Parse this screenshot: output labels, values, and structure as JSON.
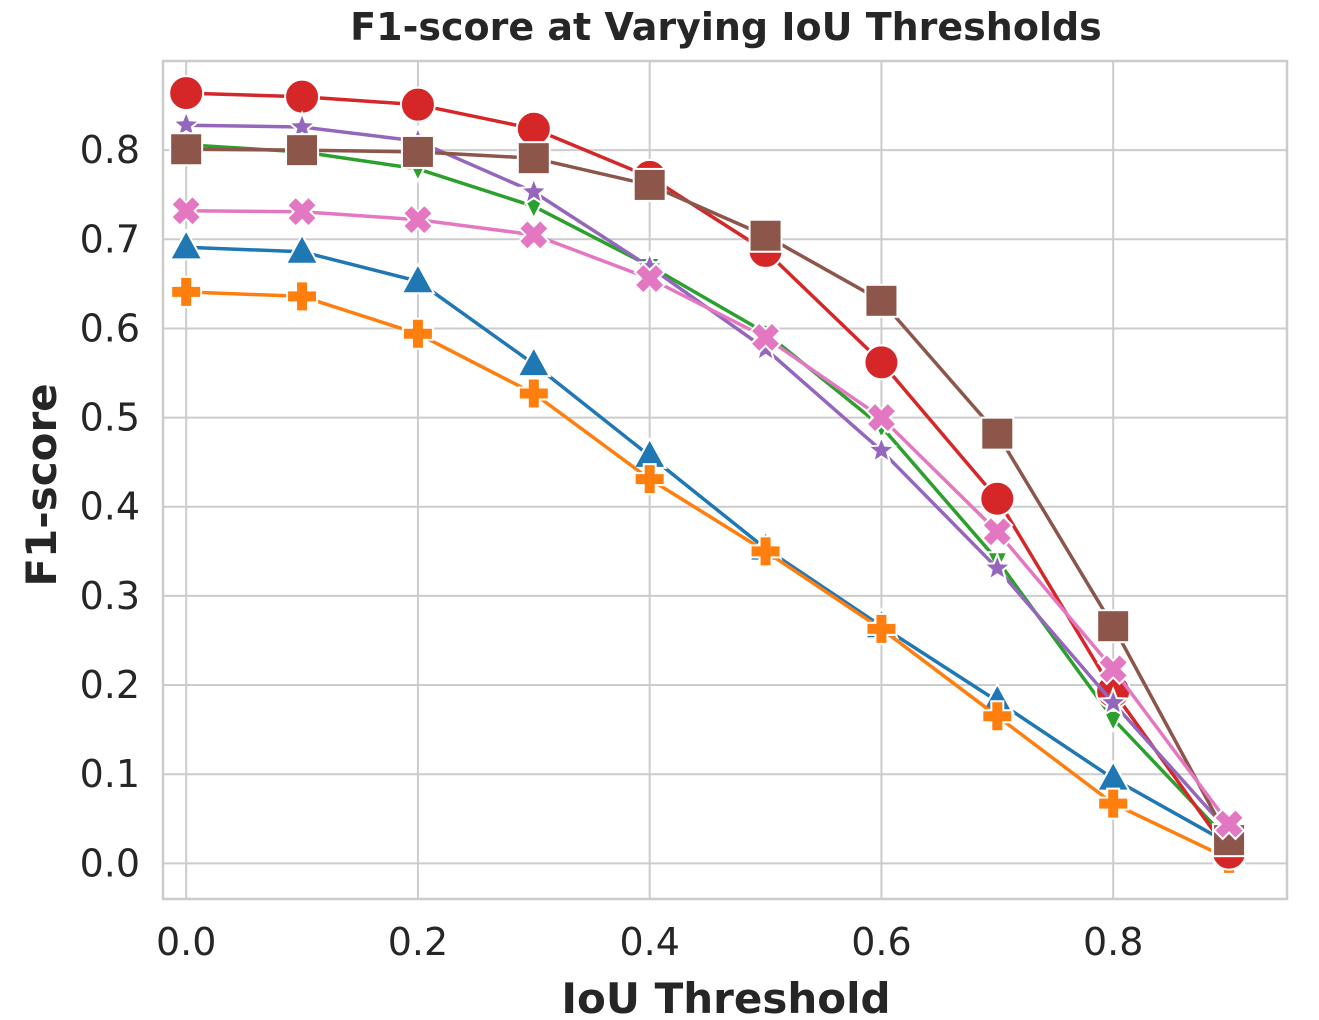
{
  "chart_data": {
    "type": "line",
    "title": "F1-score at Varying IoU Thresholds",
    "xlabel": "IoU Threshold",
    "ylabel": "F1-score",
    "xlim": [
      -0.02,
      0.95
    ],
    "ylim": [
      -0.04,
      0.9
    ],
    "xticks": [
      0.0,
      0.2,
      0.4,
      0.6,
      0.8
    ],
    "yticks": [
      0.0,
      0.1,
      0.2,
      0.3,
      0.4,
      0.5,
      0.6,
      0.7,
      0.8
    ],
    "grid": true,
    "legend": "none",
    "x": [
      0.0,
      0.1,
      0.2,
      0.3,
      0.4,
      0.5,
      0.6,
      0.7,
      0.8,
      0.9
    ],
    "series": [
      {
        "color": "#1f77b4",
        "marker": "triangle-up",
        "values": [
          0.691,
          0.686,
          0.653,
          0.56,
          0.457,
          0.353,
          0.266,
          0.182,
          0.095,
          0.022
        ]
      },
      {
        "color": "#ff7f0e",
        "marker": "plus",
        "values": [
          0.641,
          0.636,
          0.594,
          0.527,
          0.431,
          0.35,
          0.263,
          0.165,
          0.067,
          0.005
        ]
      },
      {
        "color": "#2ca02c",
        "marker": "triangle-down",
        "values": [
          0.806,
          0.798,
          0.779,
          0.737,
          0.67,
          0.595,
          0.49,
          0.34,
          0.162,
          0.025
        ]
      },
      {
        "color": "#d62728",
        "marker": "circle",
        "values": [
          0.864,
          0.86,
          0.851,
          0.824,
          0.77,
          0.687,
          0.562,
          0.409,
          0.193,
          0.012
        ]
      },
      {
        "color": "#9467bd",
        "marker": "star",
        "values": [
          0.828,
          0.826,
          0.81,
          0.753,
          0.669,
          0.577,
          0.463,
          0.331,
          0.18,
          0.035
        ]
      },
      {
        "color": "#8c564b",
        "marker": "square",
        "values": [
          0.801,
          0.8,
          0.798,
          0.791,
          0.761,
          0.704,
          0.631,
          0.482,
          0.266,
          0.026
        ]
      },
      {
        "color": "#e377c2",
        "marker": "x",
        "values": [
          0.732,
          0.731,
          0.722,
          0.705,
          0.656,
          0.59,
          0.5,
          0.372,
          0.218,
          0.044
        ]
      }
    ]
  }
}
